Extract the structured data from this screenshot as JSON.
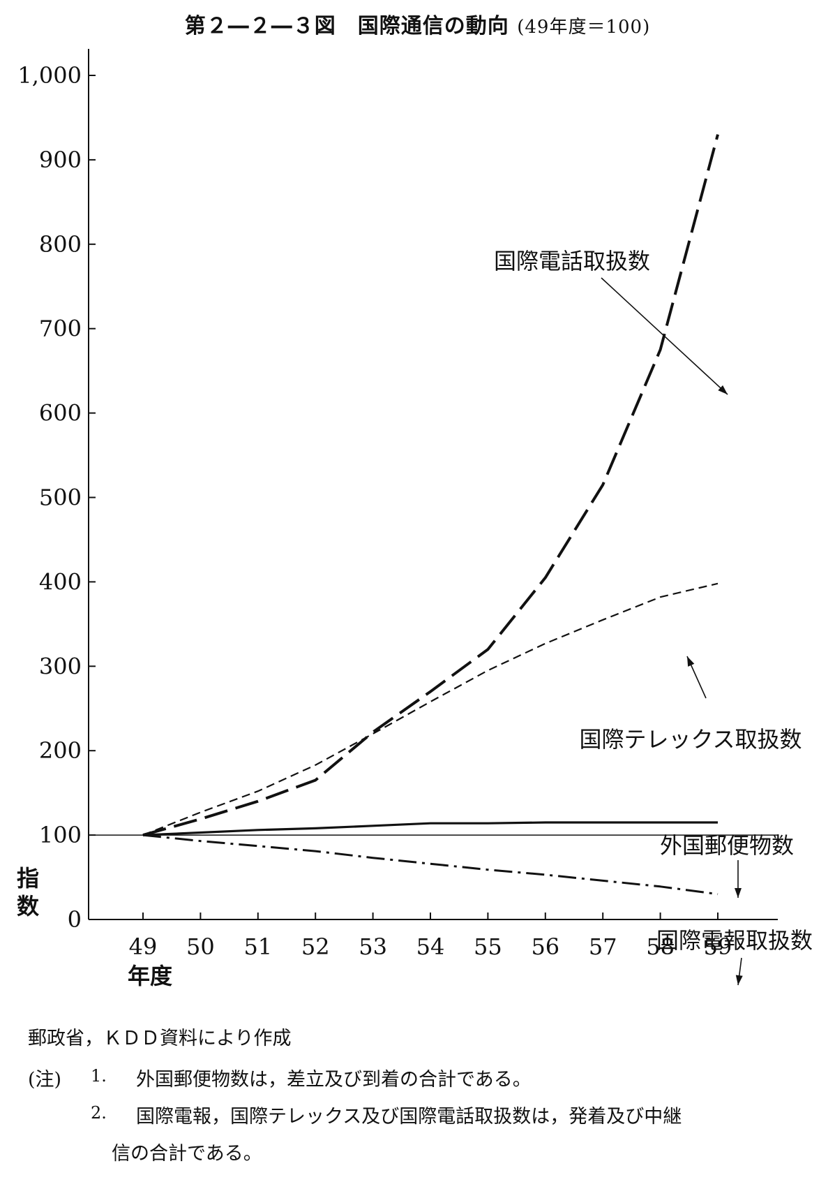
{
  "title": {
    "main": "第２―２―３図　国際通信の動向",
    "paren": "(49年度＝100)"
  },
  "chart_data": {
    "type": "line",
    "ylabel": "指数",
    "xlabel": "年度",
    "x": [
      49,
      50,
      51,
      52,
      53,
      54,
      55,
      56,
      57,
      58,
      59
    ],
    "x_tick_labels": [
      "49",
      "50",
      "51",
      "52",
      "53",
      "54",
      "55",
      "56",
      "57",
      "58",
      "59"
    ],
    "ylim": [
      0,
      1000
    ],
    "y_ticks": [
      0,
      100,
      200,
      300,
      400,
      500,
      600,
      700,
      800,
      900,
      1000
    ],
    "y_tick_labels": [
      "0",
      "100",
      "200",
      "300",
      "400",
      "500",
      "600",
      "700",
      "800",
      "900",
      "1,000"
    ],
    "reference_line": 100,
    "series": [
      {
        "name": "国際電話取扱数",
        "style": "long-dash",
        "values": [
          100,
          119,
          140,
          165,
          222,
          270,
          320,
          405,
          515,
          675,
          930
        ]
      },
      {
        "name": "国際テレックス取扱数",
        "style": "short-dash",
        "values": [
          100,
          127,
          152,
          183,
          220,
          258,
          295,
          327,
          355,
          382,
          398
        ]
      },
      {
        "name": "外国郵便物数",
        "style": "solid",
        "values": [
          100,
          103,
          106,
          108,
          111,
          114,
          114,
          115,
          115,
          115,
          115
        ]
      },
      {
        "name": "国際電報取扱数",
        "style": "dash-dot",
        "values": [
          100,
          93,
          87,
          81,
          73,
          66,
          59,
          53,
          46,
          39,
          30
        ]
      }
    ],
    "colors": {
      "line": "#111111",
      "background": "#ffffff"
    }
  },
  "footer": {
    "source": "郵政省，ＫＤＤ資料により作成",
    "note_label": "(注)",
    "notes": [
      {
        "num": "1.",
        "text": "外国郵便物数は，差立及び到着の合計である。"
      },
      {
        "num": "2.",
        "text": "国際電報，国際テレックス及び国際電話取扱数は，発着及び中継",
        "text2": "信の合計である。"
      }
    ]
  }
}
